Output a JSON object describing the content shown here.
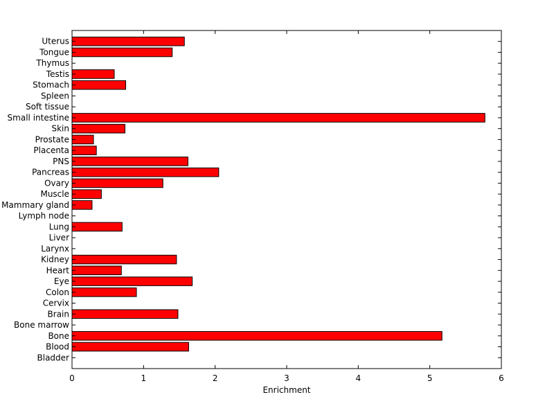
{
  "chart_data": {
    "type": "bar",
    "orientation": "horizontal",
    "categories": [
      "Bladder",
      "Blood",
      "Bone",
      "Bone marrow",
      "Brain",
      "Cervix",
      "Colon",
      "Eye",
      "Heart",
      "Kidney",
      "Larynx",
      "Liver",
      "Lung",
      "Lymph node",
      "Mammary gland",
      "Muscle",
      "Ovary",
      "Pancreas",
      "PNS",
      "Placenta",
      "Prostate",
      "Skin",
      "Small intestine",
      "Soft tissue",
      "Spleen",
      "Stomach",
      "Testis",
      "Thymus",
      "Tongue",
      "Uterus"
    ],
    "values": [
      0,
      1.63,
      5.17,
      0,
      1.48,
      0,
      0.9,
      1.68,
      0.69,
      1.46,
      0,
      0,
      0.7,
      0,
      0.28,
      0.41,
      1.27,
      2.05,
      1.62,
      0.34,
      0.3,
      0.74,
      5.77,
      0,
      0,
      0.75,
      0.59,
      0,
      1.4,
      1.57
    ],
    "xlabel": "Enrichment",
    "ylabel": "",
    "title": "",
    "xlim": [
      0,
      6
    ],
    "xticks": [
      0,
      1,
      2,
      3,
      4,
      5,
      6
    ],
    "grid": false,
    "bar_color": "#ff0000",
    "bar_edge_color": "#000000"
  }
}
